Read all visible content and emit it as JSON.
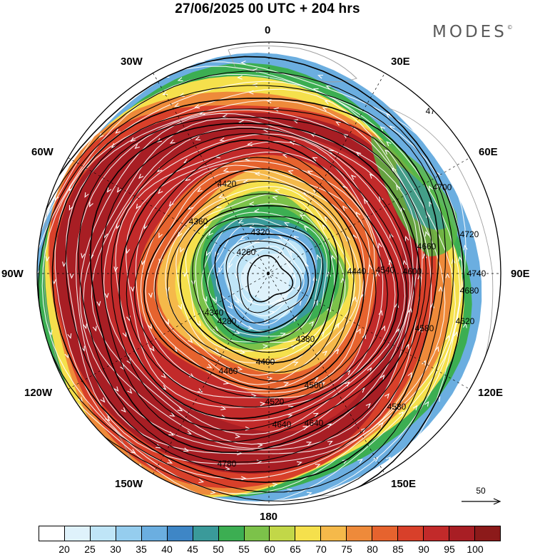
{
  "header": {
    "title": "27/06/2025  00 UTC  + 204 hrs",
    "brand": "MODES",
    "brand_mark": "©"
  },
  "map": {
    "projection": "north-polar-stereographic",
    "longitude_labels": [
      "0",
      "30E",
      "60E",
      "90E",
      "120E",
      "150E",
      "180",
      "150W",
      "120W",
      "90W",
      "60W",
      "30W"
    ],
    "contour_labels": [
      "4760",
      "4700",
      "4720",
      "4660",
      "4740",
      "4680",
      "4600",
      "4540",
      "4440",
      "4380",
      "4280",
      "4340",
      "4260",
      "4320",
      "4360",
      "4420",
      "4400",
      "4460",
      "4500",
      "4520",
      "4580",
      "4640",
      "4780",
      "4580",
      "4640",
      "4620"
    ],
    "core_colors": [
      "#8c1a1a",
      "#b8202a",
      "#e64d2e",
      "#f5a02a",
      "#f5dc3c",
      "#5ab947",
      "#3a8ec8",
      "#c6e6f7"
    ],
    "continent_color": "#9e9e9e",
    "streamline_color": "#ffffff",
    "contour_color": "#000000"
  },
  "legend": {
    "vector_reference": "50",
    "colorbar_colors": [
      "#ffffff",
      "#dff2fb",
      "#bfe5f7",
      "#95cdee",
      "#6baee0",
      "#3e86c6",
      "#3a9a9a",
      "#3cae52",
      "#7cc24a",
      "#c2d748",
      "#f5e04c",
      "#f5b94a",
      "#ee8a3a",
      "#e6632e",
      "#d8402a",
      "#c22a2a",
      "#a81e24",
      "#8c1a1a"
    ],
    "colorbar_ticks": [
      "20",
      "25",
      "30",
      "35",
      "40",
      "45",
      "50",
      "55",
      "60",
      "65",
      "70",
      "75",
      "80",
      "85",
      "90",
      "95",
      "100"
    ]
  }
}
